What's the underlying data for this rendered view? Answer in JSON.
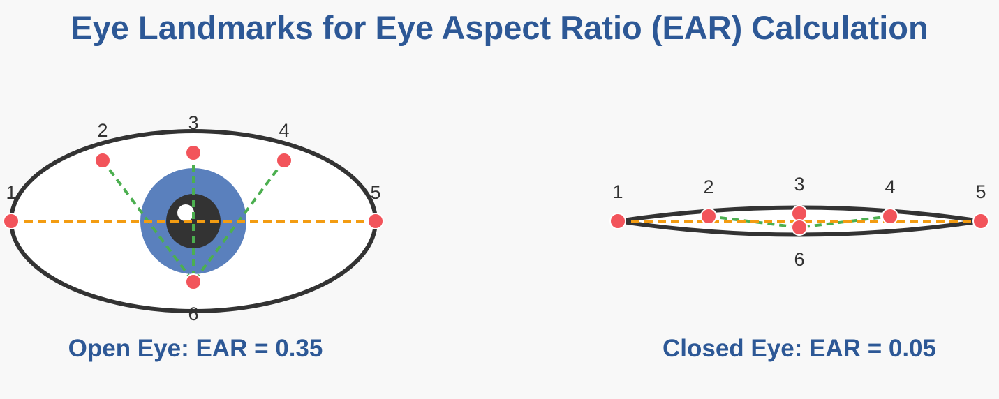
{
  "title": "Eye Landmarks for Eye Aspect Ratio (EAR) Calculation",
  "open_eye": {
    "caption": "Open Eye: EAR = 0.35",
    "landmarks": [
      "1",
      "2",
      "3",
      "4",
      "5",
      "6"
    ]
  },
  "closed_eye": {
    "caption": "Closed Eye: EAR = 0.05",
    "landmarks": [
      "1",
      "2",
      "3",
      "4",
      "5",
      "6"
    ]
  },
  "colors": {
    "title": "#2d5896",
    "outline": "#333333",
    "iris": "#5a80bd",
    "pupil": "#333333",
    "landmark": "#f2545b",
    "vertical_line": "#4caf50",
    "horizontal_line": "#f39c12"
  }
}
